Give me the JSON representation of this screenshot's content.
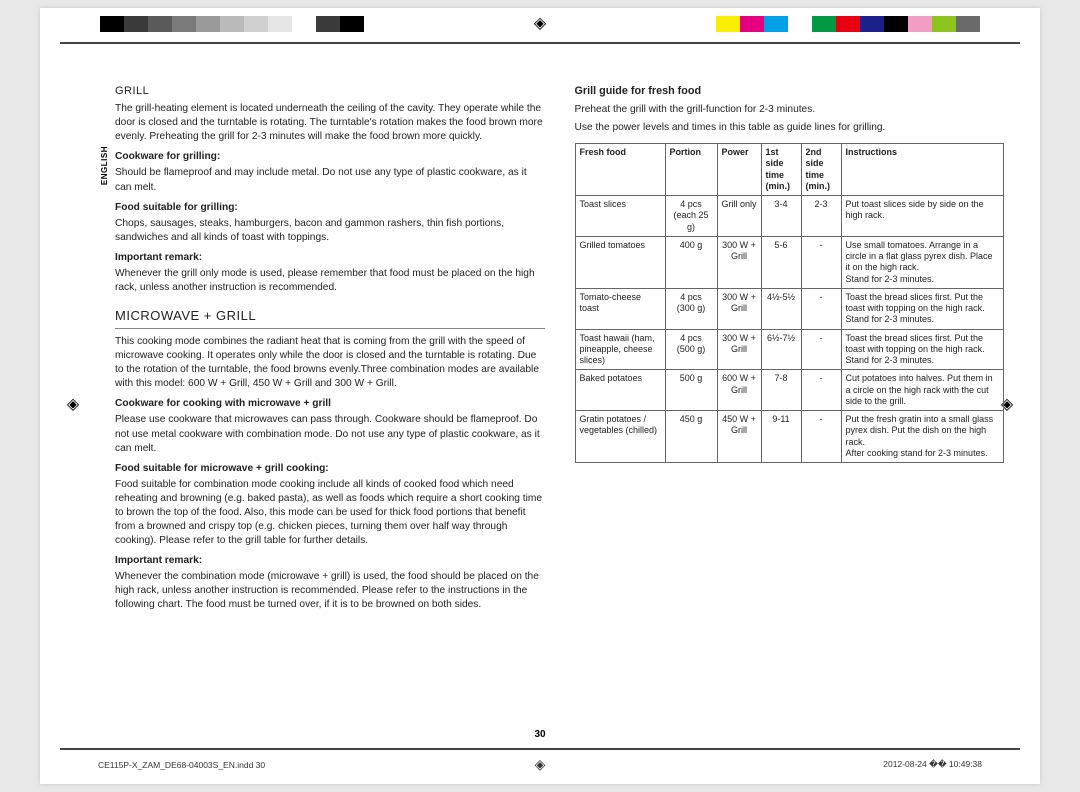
{
  "lang_tab": "ENGLISH",
  "colorbar_left": [
    "#000000",
    "#3a3a3a",
    "#5a5a5a",
    "#7a7a7a",
    "#9a9a9a",
    "#bababa",
    "#d0d0d0",
    "#e6e6e6",
    "#ffffff",
    "#3a3a3a",
    "#000000"
  ],
  "colorbar_right": [
    "#f8ef00",
    "#e4007f",
    "#00a0e9",
    "#ffffff",
    "#009944",
    "#e60012",
    "#1d2088",
    "#000000",
    "#f19ec2",
    "#8fc31f",
    "#6a6a6a"
  ],
  "left_col": {
    "grill_title": "GRILL",
    "grill_intro": "The grill-heating element is located underneath the ceiling of the cavity. They operate while the door is closed and the turntable is rotating. The turntable's rotation makes the food brown more evenly. Preheating the grill for 2-3 minutes will make the food brown more quickly.",
    "cookware_h": "Cookware for grilling:",
    "cookware_t": "Should be flameproof and may include metal. Do not use any type of plastic cookware, as it can melt.",
    "food_h": "Food suitable for grilling:",
    "food_t": "Chops, sausages, steaks, hamburgers, bacon and gammon rashers, thin fish portions, sandwiches and all kinds of toast with toppings.",
    "remark_h": "Important remark:",
    "remark_t": "Whenever the grill only mode is used, please remember that food must be placed on the high rack, unless another instruction is recommended.",
    "mw_title": "MICROWAVE + GRILL",
    "mw_intro": "This cooking mode combines the radiant heat that is coming from the grill with the speed of microwave cooking. It operates only while the door is closed and the turntable is rotating. Due to the rotation of the turntable, the food browns evenly.Three combination modes are available with this model: 600 W + Grill, 450 W + Grill and 300 W + Grill.",
    "mw_cook_h": "Cookware for cooking with microwave + grill",
    "mw_cook_t": "Please use cookware that microwaves can pass through. Cookware should be flameproof. Do not use metal cookware with combination mode. Do not use any type of plastic cookware, as it can melt.",
    "mw_food_h": "Food suitable for microwave + grill cooking:",
    "mw_food_t": "Food suitable for combination mode cooking include all kinds of cooked food which need reheating and browning (e.g. baked pasta), as well as foods which require a short cooking time to brown the top of the food. Also, this mode can be used for thick food portions that benefit from a browned and crispy top (e.g. chicken pieces, turning them over half way through cooking). Please refer to the grill table for further details.",
    "mw_rem_h": "Important remark:",
    "mw_rem_t": "Whenever the combination mode (microwave + grill) is used, the food should be placed on the high rack, unless another instruction is recommended. Please refer to the instructions in the following chart. The food must be turned over, if it is to be browned on both sides."
  },
  "right_col": {
    "title": "Grill guide for fresh food",
    "intro1": "Preheat the grill with the grill-function for 2-3 minutes.",
    "intro2": "Use the power levels and times in this table as guide lines for grilling.",
    "headers": [
      "Fresh food",
      "Portion",
      "Power",
      "1st side time (min.)",
      "2nd side time (min.)",
      "Instructions"
    ],
    "rows": [
      {
        "food": "Toast slices",
        "portion": "4 pcs\n(each 25 g)",
        "power": "Grill only",
        "t1": "3-4",
        "t2": "2-3",
        "instr": "Put toast slices side by side on the high rack."
      },
      {
        "food": "Grilled tomatoes",
        "portion": "400 g",
        "power": "300 W + Grill",
        "t1": "5-6",
        "t2": "-",
        "instr": "Use small tomatoes. Arrange in a circle in a flat glass pyrex dish. Place it on the high rack.\nStand for 2-3 minutes."
      },
      {
        "food": "Tomato-cheese toast",
        "portion": "4 pcs\n(300 g)",
        "power": "300 W + Grill",
        "t1": "4½-5½",
        "t2": "-",
        "instr": "Toast the bread slices first. Put the toast with topping on the high rack.\nStand for 2-3 minutes."
      },
      {
        "food": "Toast hawaii (ham, pineapple, cheese slices)",
        "portion": "4 pcs\n(500 g)",
        "power": "300 W + Grill",
        "t1": "6½-7½",
        "t2": "-",
        "instr": "Toast the bread slices first. Put the toast with topping on the high rack.\nStand for 2-3 minutes."
      },
      {
        "food": "Baked potatoes",
        "portion": "500 g",
        "power": "600 W + Grill",
        "t1": "7-8",
        "t2": "-",
        "instr": "Cut potatoes into halves. Put them in a circle on the high rack with the cut side to the grill."
      },
      {
        "food": "Gratin potatoes / vegetables (chilled)",
        "portion": "450 g",
        "power": "450 W + Grill",
        "t1": "9-11",
        "t2": "-",
        "instr": "Put the fresh gratin into a small glass pyrex dish. Put the dish on the high rack.\nAfter cooking stand for 2-3 minutes."
      }
    ]
  },
  "page_number": "30",
  "footer_left": "CE115P-X_ZAM_DE68-04003S_EN.indd   30",
  "footer_right": "2012-08-24   �� 10:49:38"
}
